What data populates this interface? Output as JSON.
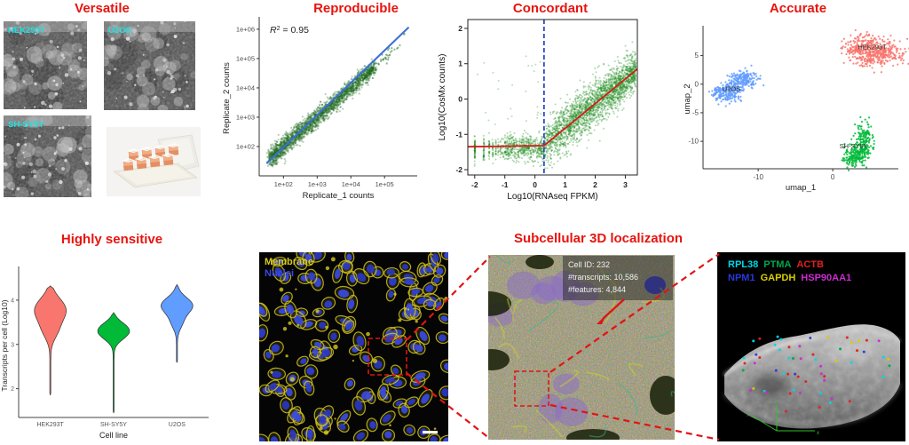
{
  "page": {
    "bg": "#ffffff",
    "accent_red": "#e8140e",
    "connector_color": "#e01414"
  },
  "panels": {
    "versatile": {
      "title": "Versatile",
      "label_color": "#19e2e2",
      "images": [
        {
          "label": "HEK293T"
        },
        {
          "label": "U2OS"
        },
        {
          "label": "SH-SY5Y"
        },
        {
          "label": "chamber-slide"
        }
      ]
    },
    "reproducible": {
      "title": "Reproducible"
    },
    "concordant": {
      "title": "Concordant"
    },
    "accurate": {
      "title": "Accurate"
    },
    "sensitive": {
      "title": "Highly sensitive"
    },
    "membrane": {
      "label1": "Membrane",
      "label1_color": "#d8cc20",
      "label2": "Nuclei",
      "label2_color": "#3848e8",
      "scalebar_color": "#ffffff"
    },
    "subcellular": {
      "title": "Subcellular 3D localization",
      "info_lines": [
        "Cell ID: 232",
        "#transcripts: 10,586",
        "#features: 4,844"
      ]
    },
    "genes3d": {
      "legend": [
        {
          "name": "RPL38",
          "color": "#00d8e8"
        },
        {
          "name": "PTMA",
          "color": "#00a84c"
        },
        {
          "name": "ACTB",
          "color": "#e02020"
        },
        {
          "name": "NPM1",
          "color": "#2838d8"
        },
        {
          "name": "GAPDH",
          "color": "#d8cc00"
        },
        {
          "name": "HSP90AA1",
          "color": "#cc2ad0"
        }
      ],
      "axis_color": "#30c030",
      "axis_labels": [
        "x",
        "y",
        "z"
      ]
    }
  },
  "chart_data": [
    {
      "type": "scatter",
      "name": "reproducible",
      "title": "Reproducible",
      "xlabel": "Replicate_1 counts",
      "ylabel": "Replicate_2 counts",
      "xlim_log": [
        1.28,
        5.97
      ],
      "ylim_log": [
        1.0,
        6.3
      ],
      "xticks_log": [
        2,
        3,
        4,
        5
      ],
      "yticks_log": [
        2,
        3,
        4,
        5,
        6
      ],
      "xtick_labels": [
        "1e+02",
        "1e+03",
        "1e+04",
        "1e+05"
      ],
      "ytick_labels": [
        "1e+02",
        "1e+03",
        "1e+04",
        "1e+05",
        "1e+06"
      ],
      "annotation": {
        "r_italic": "R",
        "sup": "2",
        "eq": " = 0.95",
        "r2_value": 0.95
      },
      "point_color": "#1e6b1e",
      "line": {
        "color": "#3a6fd8",
        "x1": 1.5,
        "y1": 1.42,
        "x2": 5.72,
        "y2": 6.07
      },
      "cloud": {
        "n": 2300,
        "t_min": 1.6,
        "t_span": 3.1,
        "t_pow": 1.15,
        "sd": 0.125,
        "sparse_n": 55,
        "sparse_min": 4.35,
        "sparse_span": 1.05,
        "outlier": [
          5.58,
          5.84
        ]
      }
    },
    {
      "type": "scatter",
      "name": "concordant",
      "title": "Concordant",
      "xlabel": "Log10(RNAseq FPKM)",
      "ylabel": "Log10(CosMx counts)",
      "xlim": [
        -2.23,
        3.4
      ],
      "ylim": [
        -2.15,
        2.25
      ],
      "xticks": [
        -2,
        -1,
        0,
        1,
        2,
        3
      ],
      "yticks": [
        -2,
        -1,
        0,
        1,
        2
      ],
      "point_color": "#1e8c1e",
      "vline": {
        "x": 0.3,
        "color": "#2845cc"
      },
      "fit": {
        "color": "#d41c1c",
        "flat_y": -1.35,
        "break_x": 0.3,
        "end_x": 3.4,
        "end_y": 0.85
      },
      "stripes": {
        "xs": [
          -2,
          -1.7,
          -1.52,
          -1.4,
          -1.3,
          -1.22,
          -1.15,
          -1.1,
          -1.05,
          -1.0
        ],
        "ns": [
          70,
          40,
          28,
          22,
          18,
          14,
          12,
          10,
          9,
          8
        ],
        "y_center": -1.42,
        "y_sd": 0.17
      },
      "flat_cloud": {
        "n": 520,
        "x_min": -1.0,
        "x_max": 0.3,
        "y_center": -1.38,
        "y_sd": 0.17
      },
      "rise_cloud": {
        "n": 2400,
        "x_start": 0.3,
        "x_span": 3.05,
        "x_pow": 0.85,
        "slope": 0.69,
        "y0": -1.3,
        "sd": 0.27
      },
      "outliers": {
        "n": 26,
        "x_min": -2.0,
        "x_max": 0.2,
        "y_min": -0.8,
        "y_max": 1.25
      }
    },
    {
      "type": "scatter",
      "name": "umap",
      "title": "Accurate",
      "xlabel": "umap_1",
      "ylabel": "umap_2",
      "xlim": [
        -17.4,
        8.8
      ],
      "ylim": [
        -14.8,
        9.6
      ],
      "xticks": [
        -10,
        0
      ],
      "yticks": [
        5,
        0,
        -5,
        -10
      ],
      "clusters": [
        {
          "name": "HEK293T",
          "color": "#F8766D",
          "n": 520,
          "centers": [
            [
              4.3,
              6.8
            ],
            [
              6.3,
              6.3
            ],
            [
              5.3,
              4.6
            ],
            [
              7.6,
              5.4
            ],
            [
              3.4,
              6.0
            ]
          ],
          "sx": 1.2,
          "sy": 1.0,
          "label_at": [
            5.3,
            6.1
          ],
          "label_color": "#3a3a3a"
        },
        {
          "name": "U2OS",
          "color": "#619CFF",
          "n": 400,
          "centers": [
            [
              -14.8,
              -1.3
            ],
            [
              -13.4,
              -0.9
            ],
            [
              -12.2,
              0.6
            ],
            [
              -11.5,
              1.1
            ],
            [
              -13.9,
              -1.8
            ]
          ],
          "sx": 0.85,
          "sy": 0.7,
          "label_at": [
            -13.6,
            -1.2
          ],
          "label_color": "#2a2a2a"
        },
        {
          "name": "SH-SY5Y",
          "color": "#00BA38",
          "n": 330,
          "centers": [
            [
              4.3,
              -8.6
            ],
            [
              4.4,
              -10.2
            ],
            [
              4.0,
              -11.6
            ],
            [
              3.2,
              -12.6
            ],
            [
              2.4,
              -13.0
            ]
          ],
          "sx": 0.55,
          "sy": 1.0,
          "label_at": [
            2.8,
            -11.2
          ],
          "label_color": "#2a2a2a"
        }
      ]
    },
    {
      "type": "violin",
      "name": "sensitivity",
      "title": "Highly sensitive",
      "xlabel": "Cell line",
      "ylabel": "Transcripts per cell (Log10)",
      "categories": [
        "HEK293T",
        "SH-SY5Y",
        "U2OS"
      ],
      "colors": [
        "#F8766D",
        "#00BA38",
        "#619CFF"
      ],
      "ylim": [
        1.35,
        4.6
      ],
      "yticks": [
        2,
        3,
        4
      ],
      "violins": [
        {
          "peak": 3.78,
          "sigma": 0.26,
          "shoulder": {
            "at": 3.3,
            "w": 0.35,
            "sigma": 0.2
          },
          "top": 4.32,
          "min": 1.85
        },
        {
          "peak": 3.27,
          "sigma": 0.16,
          "shoulder": {
            "at": 3.45,
            "w": 0.25,
            "sigma": 0.12
          },
          "top": 3.72,
          "min": 1.45
        },
        {
          "peak": 3.88,
          "sigma": 0.18,
          "shoulder": {
            "at": 3.5,
            "w": 0.3,
            "sigma": 0.16
          },
          "top": 4.35,
          "min": 2.58
        }
      ]
    }
  ]
}
